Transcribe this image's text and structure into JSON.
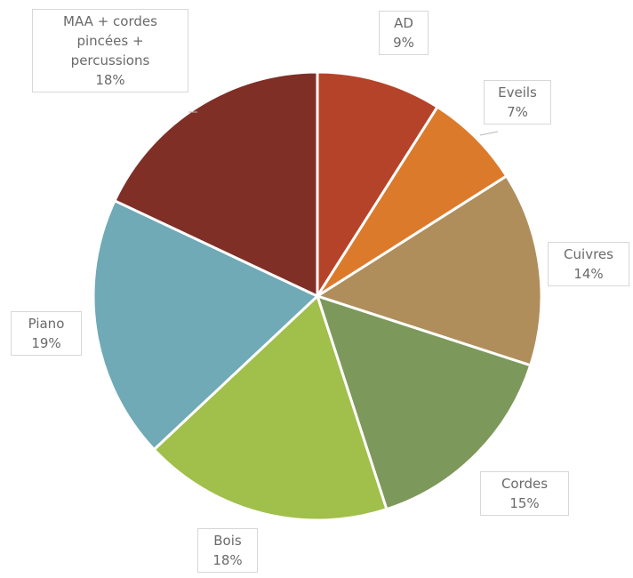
{
  "chart_data": {
    "type": "pie",
    "title": "",
    "slices": [
      {
        "label": "AD",
        "value": 9,
        "percent_label": "9%",
        "color": "#b5432a"
      },
      {
        "label": "Eveils",
        "value": 7,
        "percent_label": "7%",
        "color": "#dc7a2c"
      },
      {
        "label": "Cuivres",
        "value": 14,
        "percent_label": "14%",
        "color": "#b08e5c"
      },
      {
        "label": "Cordes",
        "value": 15,
        "percent_label": "15%",
        "color": "#7d985b"
      },
      {
        "label": "Bois",
        "value": 18,
        "percent_label": "18%",
        "color": "#a1bf4b"
      },
      {
        "label": "Piano",
        "value": 19,
        "percent_label": "19%",
        "color": "#6faab6"
      },
      {
        "label": "MAA + cordes pincées + percussions",
        "value": 18,
        "percent_label": "18%",
        "color": "#7f2f26",
        "label_lines": [
          "MAA + cordes",
          "pincées +",
          "percussions"
        ]
      }
    ]
  }
}
